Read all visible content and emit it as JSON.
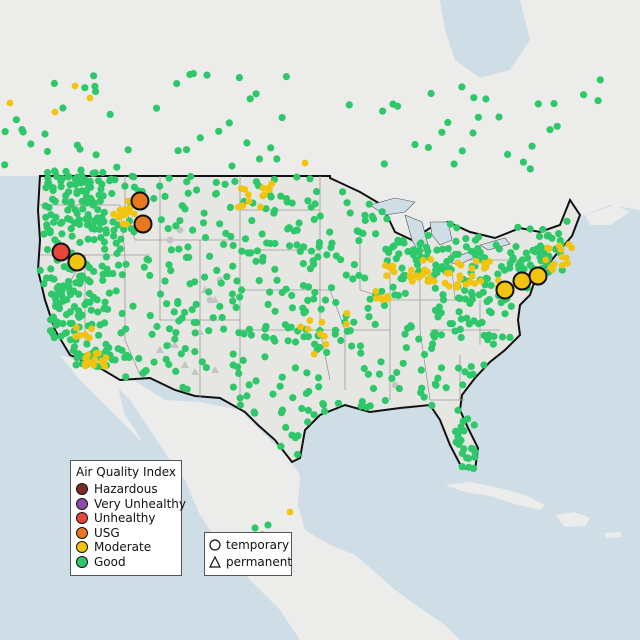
{
  "legend": {
    "title": "Air Quality Index",
    "items": [
      {
        "label": "Hazardous",
        "color": "#7e2a24"
      },
      {
        "label": "Very Unhealthy",
        "color": "#8d4aa8"
      },
      {
        "label": "Unhealthy",
        "color": "#e8463a"
      },
      {
        "label": "USG",
        "color": "#e8781e"
      },
      {
        "label": "Moderate",
        "color": "#f2c40f"
      },
      {
        "label": "Good",
        "color": "#2ec86a"
      }
    ]
  },
  "monitor_types": [
    {
      "label": "temporary",
      "shape": "circle-icon"
    },
    {
      "label": "permanent",
      "shape": "triangle-icon"
    }
  ],
  "colors": {
    "water": "#cfdde6",
    "land": "#ececea",
    "us_land": "#e6e6e2",
    "state_border": "#9a9a9a",
    "country_border": "#111111",
    "good": "#2ec86a",
    "moderate": "#f2c40f",
    "usg": "#e8781e",
    "unhealthy": "#e8463a",
    "no_data": "#c4c4c4"
  }
}
